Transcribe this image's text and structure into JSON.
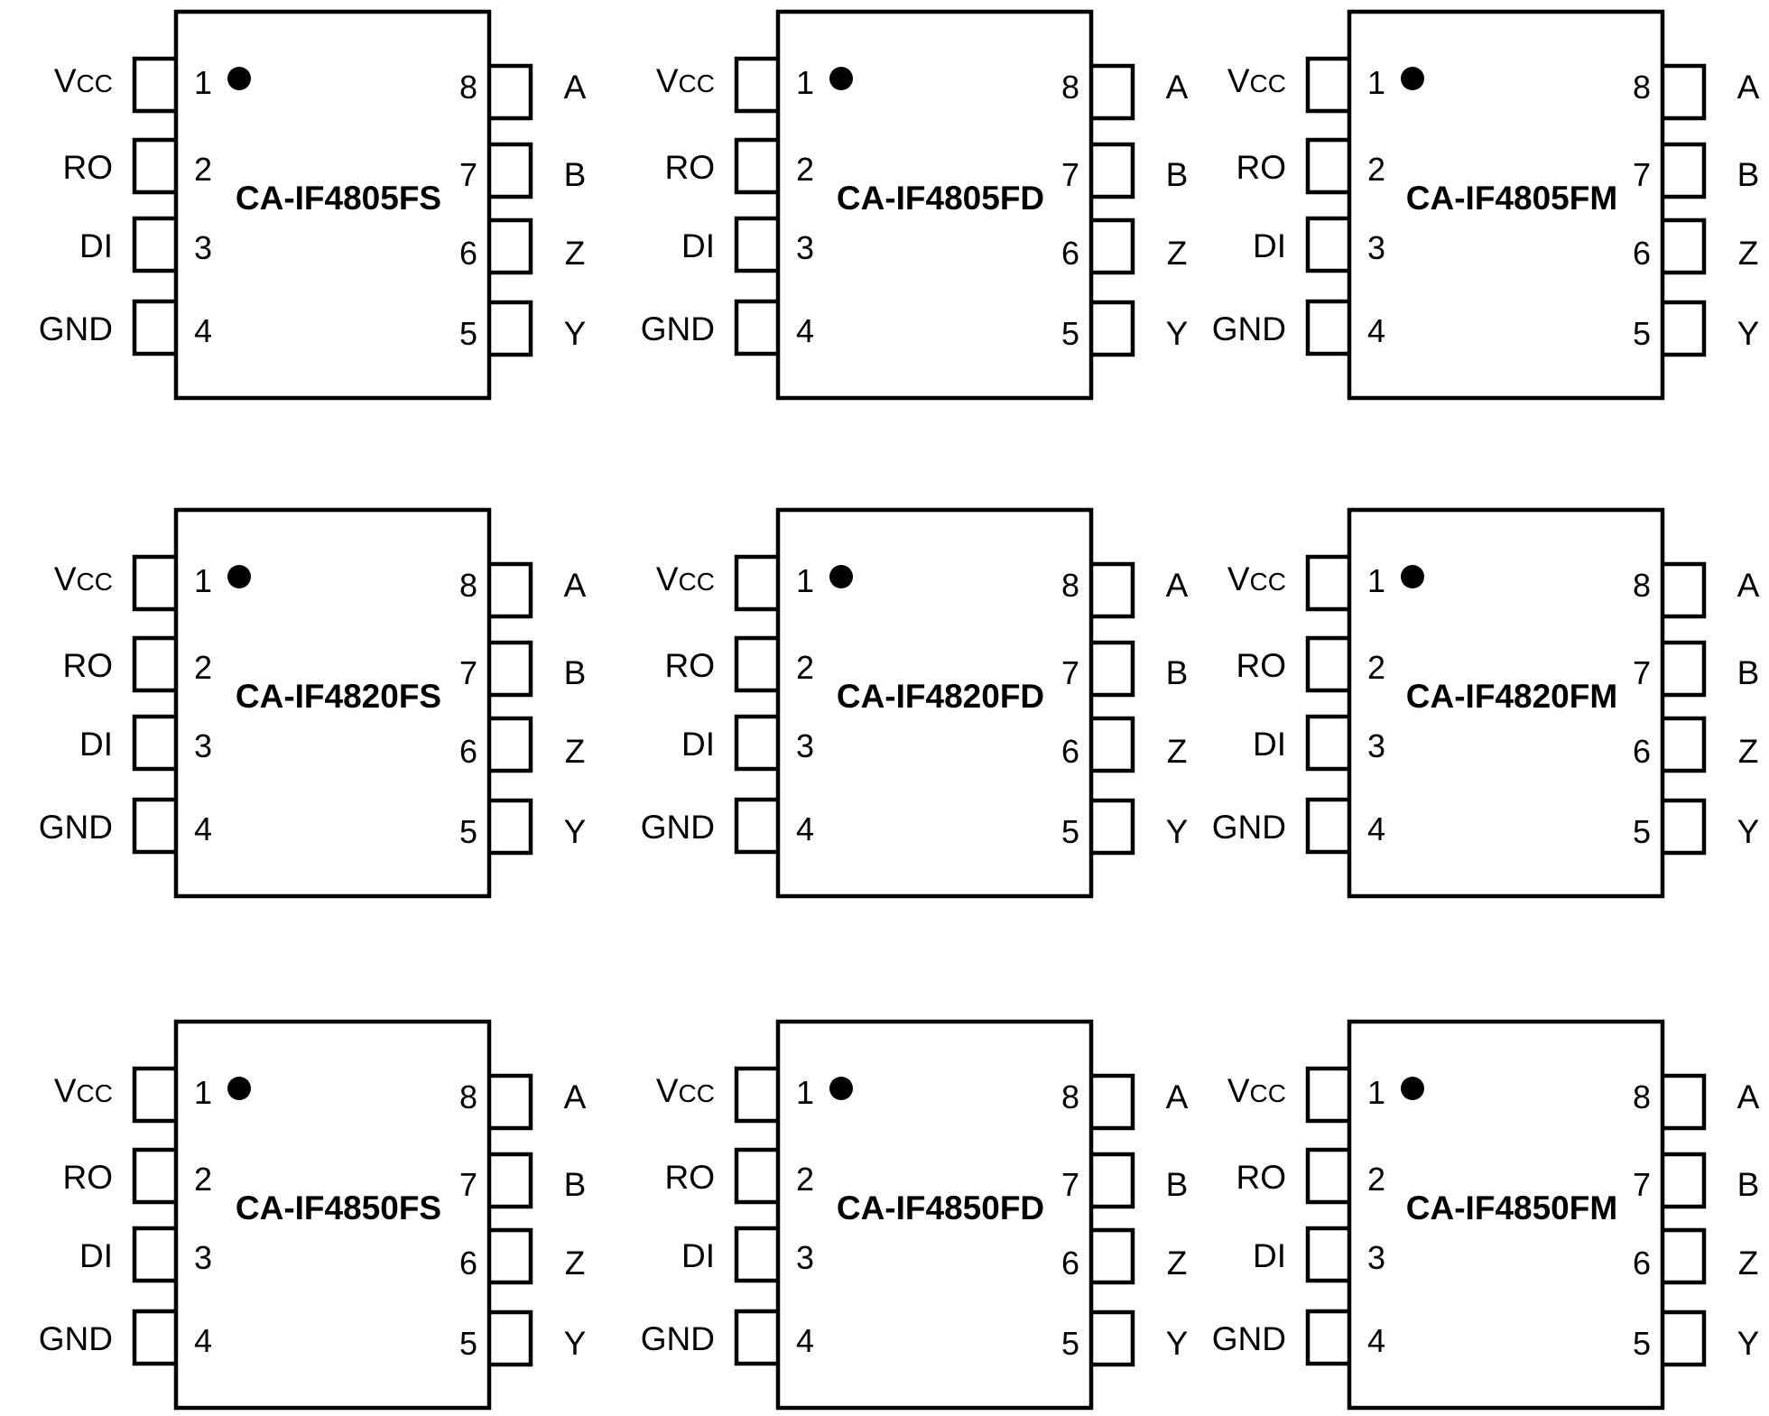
{
  "packages": [
    {
      "part_number": "CA-IF4805FS"
    },
    {
      "part_number": "CA-IF4805FD"
    },
    {
      "part_number": "CA-IF4805FM"
    },
    {
      "part_number": "CA-IF4820FS"
    },
    {
      "part_number": "CA-IF4820FD"
    },
    {
      "part_number": "CA-IF4820FM"
    },
    {
      "part_number": "CA-IF4850FS"
    },
    {
      "part_number": "CA-IF4850FD"
    },
    {
      "part_number": "CA-IF4850FM"
    }
  ],
  "pins": {
    "left": [
      {
        "number": "1",
        "signal": "V",
        "subscript": "CC"
      },
      {
        "number": "2",
        "signal": "RO"
      },
      {
        "number": "3",
        "signal": "DI"
      },
      {
        "number": "4",
        "signal": "GND"
      }
    ],
    "right": [
      {
        "number": "8",
        "signal": "A"
      },
      {
        "number": "7",
        "signal": "B"
      },
      {
        "number": "6",
        "signal": "Z"
      },
      {
        "number": "5",
        "signal": "Y"
      }
    ]
  }
}
